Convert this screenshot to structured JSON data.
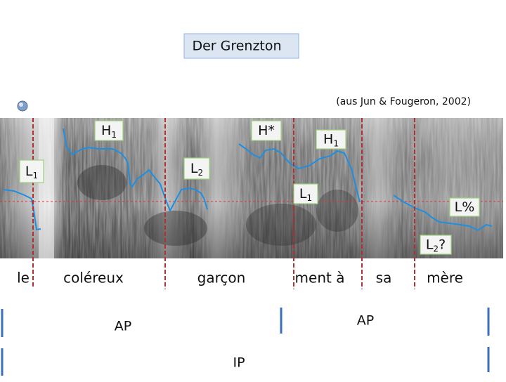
{
  "title": "Der Grenzton",
  "citation": "(aus Jun & Fougeron, 2002)",
  "tones": [
    {
      "parts": [
        {
          "text": "H"
        },
        {
          "text": "1",
          "sub": true
        }
      ]
    },
    {
      "parts": [
        {
          "text": "H*"
        }
      ]
    },
    {
      "parts": [
        {
          "text": "H"
        },
        {
          "text": "1",
          "sub": true
        }
      ]
    },
    {
      "parts": [
        {
          "text": "L"
        },
        {
          "text": "1",
          "sub": true
        }
      ]
    },
    {
      "parts": [
        {
          "text": "L"
        },
        {
          "text": "2",
          "sub": true
        }
      ]
    },
    {
      "parts": [
        {
          "text": "L"
        },
        {
          "text": "1",
          "sub": true
        }
      ]
    },
    {
      "parts": [
        {
          "text": "L%"
        }
      ]
    },
    {
      "parts": [
        {
          "text": "L"
        },
        {
          "text": "2",
          "sub": true
        },
        {
          "text": "?"
        }
      ]
    }
  ],
  "words": [
    "le",
    "coléreux",
    "garçon",
    "ment à",
    "sa",
    "mère"
  ],
  "phrases": [
    "AP",
    "AP",
    "IP"
  ]
}
